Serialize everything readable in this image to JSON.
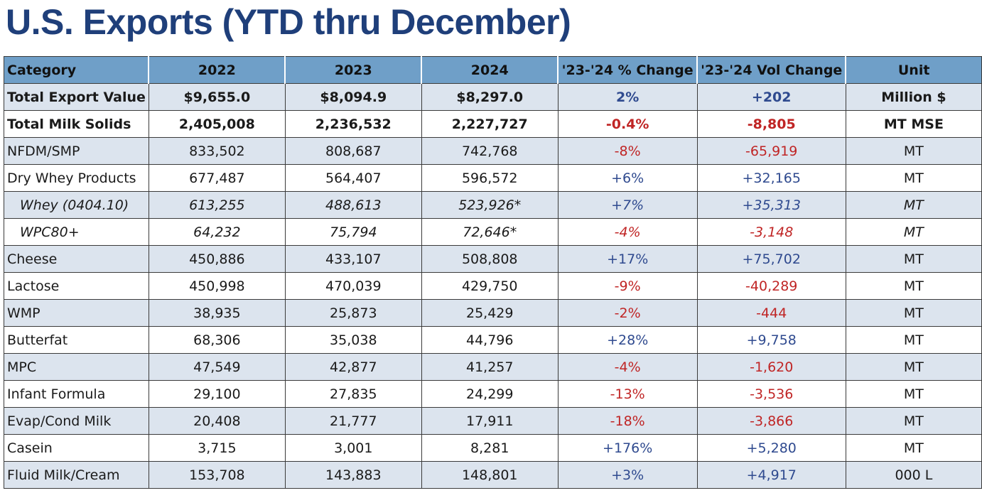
{
  "title": "U.S. Exports (YTD thru December)",
  "colors": {
    "title": "#1f3f7a",
    "header_bg": "#6f9fc8",
    "row_shade": "#dce4ee",
    "positive": "#2f4a8f",
    "negative": "#c02525"
  },
  "table": {
    "headers": [
      "Category",
      "2022",
      "2023",
      "2024",
      "'23-'24 % Change",
      "'23-'24 Vol Change",
      "Unit"
    ],
    "rows": [
      {
        "category": "Total Export Value",
        "y2022": "$9,655.0",
        "y2023": "$8,094.9",
        "y2024": "$8,297.0",
        "pct": "2%",
        "vol": "+202",
        "unit": "Million $",
        "sign": "pos",
        "style": "bold"
      },
      {
        "category": "Total Milk Solids",
        "y2022": "2,405,008",
        "y2023": "2,236,532",
        "y2024": "2,227,727",
        "pct": "-0.4%",
        "vol": "-8,805",
        "unit": "MT MSE",
        "sign": "neg",
        "style": "bold"
      },
      {
        "category": "NFDM/SMP",
        "y2022": "833,502",
        "y2023": "808,687",
        "y2024": "742,768",
        "pct": "-8%",
        "vol": "-65,919",
        "unit": "MT",
        "sign": "neg",
        "style": "normal"
      },
      {
        "category": "Dry Whey Products",
        "y2022": "677,487",
        "y2023": "564,407",
        "y2024": "596,572",
        "pct": "+6%",
        "vol": "+32,165",
        "unit": "MT",
        "sign": "pos",
        "style": "normal"
      },
      {
        "category": "Whey (0404.10)",
        "y2022": "613,255",
        "y2023": "488,613",
        "y2024": "523,926*",
        "pct": "+7%",
        "vol": "+35,313",
        "unit": "MT",
        "sign": "pos",
        "style": "sub"
      },
      {
        "category": "WPC80+",
        "y2022": "64,232",
        "y2023": "75,794",
        "y2024": "72,646*",
        "pct": "-4%",
        "vol": "-3,148",
        "unit": "MT",
        "sign": "neg",
        "style": "sub"
      },
      {
        "category": "Cheese",
        "y2022": "450,886",
        "y2023": "433,107",
        "y2024": "508,808",
        "pct": "+17%",
        "vol": "+75,702",
        "unit": "MT",
        "sign": "pos",
        "style": "normal"
      },
      {
        "category": "Lactose",
        "y2022": "450,998",
        "y2023": "470,039",
        "y2024": "429,750",
        "pct": "-9%",
        "vol": "-40,289",
        "unit": "MT",
        "sign": "neg",
        "style": "normal"
      },
      {
        "category": "WMP",
        "y2022": "38,935",
        "y2023": "25,873",
        "y2024": "25,429",
        "pct": "-2%",
        "vol": "-444",
        "unit": "MT",
        "sign": "neg",
        "style": "normal"
      },
      {
        "category": "Butterfat",
        "y2022": "68,306",
        "y2023": "35,038",
        "y2024": "44,796",
        "pct": "+28%",
        "vol": "+9,758",
        "unit": "MT",
        "sign": "pos",
        "style": "normal"
      },
      {
        "category": "MPC",
        "y2022": "47,549",
        "y2023": "42,877",
        "y2024": "41,257",
        "pct": "-4%",
        "vol": "-1,620",
        "unit": "MT",
        "sign": "neg",
        "style": "normal"
      },
      {
        "category": "Infant Formula",
        "y2022": "29,100",
        "y2023": "27,835",
        "y2024": "24,299",
        "pct": "-13%",
        "vol": "-3,536",
        "unit": "MT",
        "sign": "neg",
        "style": "normal"
      },
      {
        "category": "Evap/Cond Milk",
        "y2022": "20,408",
        "y2023": "21,777",
        "y2024": "17,911",
        "pct": "-18%",
        "vol": "-3,866",
        "unit": "MT",
        "sign": "neg",
        "style": "normal"
      },
      {
        "category": "Casein",
        "y2022": "3,715",
        "y2023": "3,001",
        "y2024": "8,281",
        "pct": "+176%",
        "vol": "+5,280",
        "unit": "MT",
        "sign": "pos",
        "style": "normal"
      },
      {
        "category": "Fluid Milk/Cream",
        "y2022": "153,708",
        "y2023": "143,883",
        "y2024": "148,801",
        "pct": "+3%",
        "vol": "+4,917",
        "unit": "000 L",
        "sign": "pos",
        "style": "normal"
      }
    ]
  }
}
